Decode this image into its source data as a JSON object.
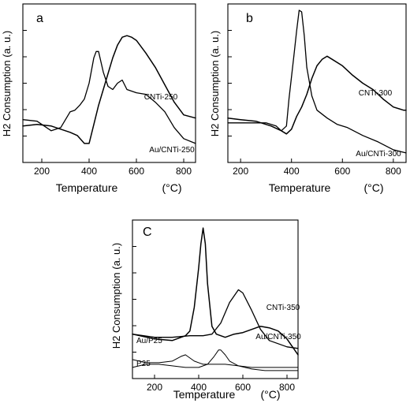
{
  "chart_data": [
    {
      "type": "line",
      "panel_letter": "a",
      "xlabel": "Temperature",
      "xunit": "(°C)",
      "ylabel": "H2 Consumption (a. u.)",
      "xlim": [
        120,
        850
      ],
      "ylim": [
        0,
        100
      ],
      "xticks": [
        200,
        400,
        600,
        800
      ],
      "y_tick_labels": false,
      "series": [
        {
          "name": "CNTi-250",
          "x": [
            120,
            180,
            240,
            280,
            320,
            350,
            380,
            400,
            420,
            440,
            460,
            480,
            500,
            520,
            540,
            560,
            580,
            600,
            640,
            680,
            720,
            760,
            800,
            850
          ],
          "y": [
            23,
            24,
            23,
            21,
            19,
            17,
            12,
            12,
            24,
            36,
            46,
            56,
            66,
            74,
            79,
            80,
            79,
            77,
            69,
            60,
            49,
            38,
            30,
            28
          ]
        },
        {
          "name": "Au/CNTi-250",
          "x": [
            120,
            180,
            240,
            280,
            320,
            340,
            360,
            380,
            400,
            420,
            430,
            440,
            460,
            480,
            500,
            520,
            540,
            560,
            600,
            640,
            680,
            720,
            760,
            800,
            850
          ],
          "y": [
            27,
            26,
            20,
            22,
            32,
            33,
            36,
            40,
            50,
            66,
            70,
            70,
            57,
            48,
            46,
            50,
            52,
            46,
            44,
            43,
            38,
            32,
            22,
            15,
            12
          ]
        }
      ]
    },
    {
      "type": "line",
      "panel_letter": "b",
      "xlabel": "Temperature",
      "xunit": "(°C)",
      "ylabel": "H2 Consumption (a. u.)",
      "xlim": [
        150,
        850
      ],
      "ylim": [
        0,
        100
      ],
      "xticks": [
        200,
        400,
        600,
        800
      ],
      "y_tick_labels": false,
      "series": [
        {
          "name": "CNTi-300",
          "x": [
            150,
            200,
            260,
            320,
            360,
            380,
            400,
            420,
            440,
            460,
            480,
            500,
            520,
            540,
            560,
            600,
            640,
            680,
            720,
            760,
            800,
            840,
            850
          ],
          "y": [
            28,
            27,
            26,
            23,
            20,
            18,
            21,
            29,
            35,
            43,
            53,
            61,
            65,
            67,
            65,
            61,
            55,
            50,
            46,
            40,
            35,
            33,
            33
          ]
        },
        {
          "name": "Au/CNTi-300",
          "x": [
            150,
            200,
            260,
            300,
            340,
            360,
            380,
            390,
            400,
            410,
            420,
            430,
            440,
            450,
            460,
            480,
            500,
            540,
            580,
            620,
            680,
            740,
            800,
            850
          ],
          "y": [
            25,
            25,
            25,
            25,
            23,
            20,
            23,
            40,
            54,
            68,
            83,
            96,
            95,
            80,
            60,
            42,
            33,
            28,
            24,
            22,
            17,
            13,
            8,
            6
          ]
        }
      ]
    },
    {
      "type": "line",
      "panel_letter": "C",
      "xlabel": "Temperature",
      "xunit": "(°C)",
      "ylabel": "H2 Consumption (a. u.)",
      "xlim": [
        100,
        850
      ],
      "ylim": [
        0,
        100
      ],
      "xticks": [
        200,
        400,
        600,
        800
      ],
      "y_tick_labels": false,
      "series": [
        {
          "name": "Au/CNTi-350",
          "x": [
            100,
            200,
            280,
            340,
            360,
            380,
            400,
            410,
            420,
            430,
            440,
            460,
            480,
            520,
            560,
            600,
            640,
            680,
            720,
            760,
            800,
            850
          ],
          "y": [
            28,
            25,
            24,
            27,
            30,
            45,
            70,
            85,
            95,
            85,
            60,
            33,
            28,
            26,
            28,
            29,
            31,
            33,
            32,
            30,
            25,
            15
          ]
        },
        {
          "name": "CNTi-350",
          "x": [
            100,
            200,
            280,
            360,
            420,
            460,
            500,
            540,
            580,
            600,
            640,
            680,
            720,
            760,
            800,
            850
          ],
          "y": [
            28,
            26,
            26,
            27,
            27,
            28,
            35,
            48,
            56,
            54,
            43,
            31,
            24,
            22,
            20,
            19
          ]
        },
        {
          "name": "Au/P25",
          "x": [
            100,
            160,
            220,
            280,
            320,
            340,
            360,
            380,
            420,
            460,
            520,
            580,
            640,
            700,
            760,
            850
          ],
          "y": [
            12,
            10,
            10,
            11,
            14,
            15,
            13,
            11,
            9,
            9,
            9,
            8,
            7,
            7,
            7,
            7
          ]
        },
        {
          "name": "P25",
          "x": [
            100,
            160,
            220,
            280,
            340,
            400,
            440,
            470,
            490,
            500,
            520,
            540,
            580,
            640,
            700,
            760,
            850
          ],
          "y": [
            7,
            9,
            9,
            8,
            7,
            7,
            9,
            14,
            18,
            18,
            15,
            11,
            8,
            6,
            5,
            5,
            5
          ]
        }
      ]
    }
  ]
}
